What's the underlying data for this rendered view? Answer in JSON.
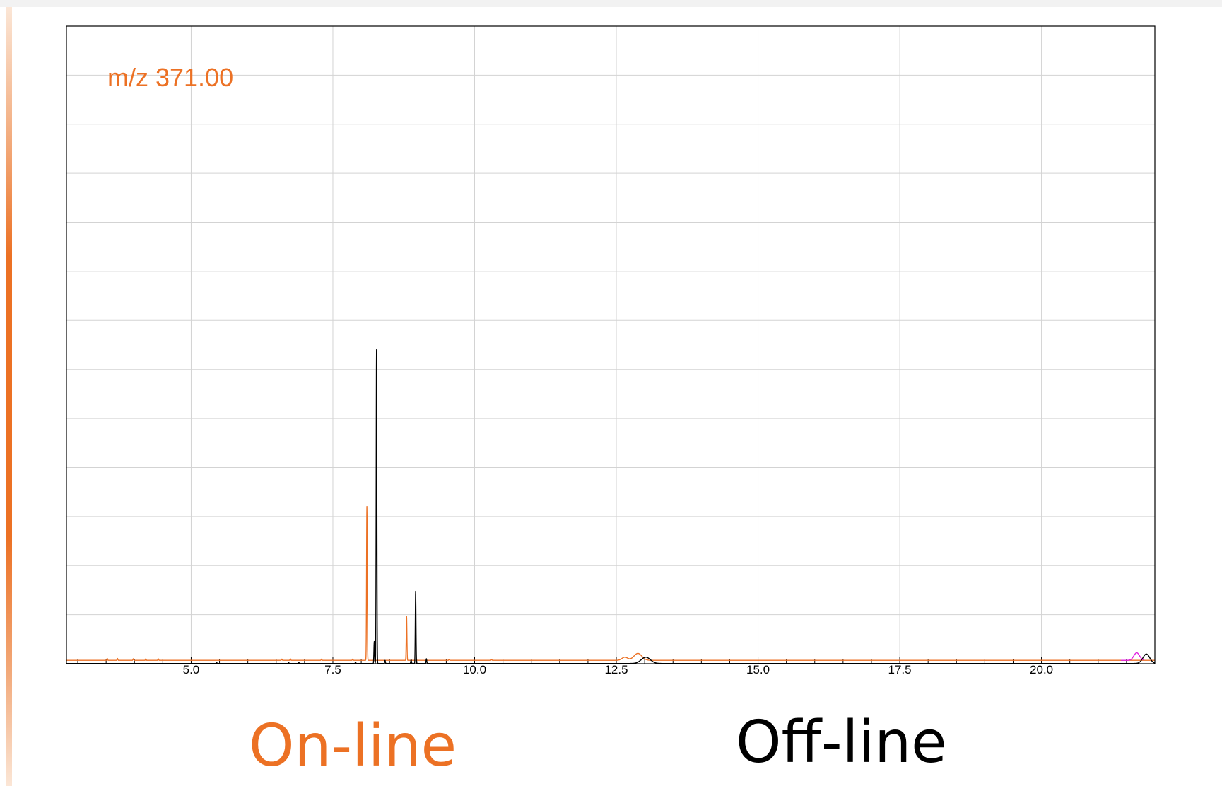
{
  "colors": {
    "online": "#ec7124",
    "offline": "#000000",
    "magenta": "#e020e0",
    "grid": "#d3d3d3",
    "accent": "#ec7124"
  },
  "annotation": "m/z 371.00",
  "labels": {
    "online": "On-line",
    "offline": "Off-line"
  },
  "chart_data": {
    "type": "line",
    "title": "",
    "xlabel": "",
    "ylabel": "",
    "xlim": [
      2.8,
      22.0
    ],
    "ylim": [
      0,
      100
    ],
    "grid": true,
    "x_ticks": [
      5.0,
      7.5,
      10.0,
      12.5,
      15.0,
      17.5,
      20.0
    ],
    "x_tick_labels": [
      "5.0",
      "7.5",
      "10.0",
      "12.5",
      "15.0",
      "17.5",
      "20.0"
    ],
    "annotation": "m/z 371.00",
    "series": [
      {
        "name": "On-line",
        "color": "#ec7124",
        "baseline": 0.4,
        "peaks": [
          {
            "x": 3.52,
            "h": 0.6,
            "w": 0.006
          },
          {
            "x": 3.7,
            "h": 0.6,
            "w": 0.006
          },
          {
            "x": 3.98,
            "h": 0.5,
            "w": 0.006
          },
          {
            "x": 4.2,
            "h": 0.5,
            "w": 0.006
          },
          {
            "x": 4.42,
            "h": 0.5,
            "w": 0.006
          },
          {
            "x": 6.6,
            "h": 0.4,
            "w": 0.006
          },
          {
            "x": 6.75,
            "h": 0.5,
            "w": 0.006
          },
          {
            "x": 7.3,
            "h": 0.4,
            "w": 0.006
          },
          {
            "x": 7.85,
            "h": 0.4,
            "w": 0.006
          },
          {
            "x": 8.1,
            "h": 49.0,
            "w": 0.006
          },
          {
            "x": 8.8,
            "h": 14.0,
            "w": 0.006
          },
          {
            "x": 9.55,
            "h": 0.3,
            "w": 0.006
          },
          {
            "x": 10.3,
            "h": 0.3,
            "w": 0.006
          },
          {
            "x": 12.65,
            "h": 1.0,
            "w": 0.05
          },
          {
            "x": 12.88,
            "h": 2.2,
            "w": 0.07
          }
        ]
      },
      {
        "name": "Off-line",
        "color": "#000000",
        "baseline": -0.6,
        "peaks": [
          {
            "x": 5.45,
            "h": 0.3,
            "w": 0.006
          },
          {
            "x": 6.72,
            "h": 0.3,
            "w": 0.006
          },
          {
            "x": 6.9,
            "h": 0.3,
            "w": 0.006
          },
          {
            "x": 7.9,
            "h": 0.4,
            "w": 0.006
          },
          {
            "x": 8.23,
            "h": 7.0,
            "w": 0.006
          },
          {
            "x": 8.27,
            "h": 100.0,
            "w": 0.006
          },
          {
            "x": 8.42,
            "h": 1.0,
            "w": 0.006
          },
          {
            "x": 8.88,
            "h": 1.2,
            "w": 0.006
          },
          {
            "x": 8.96,
            "h": 23.0,
            "w": 0.006
          },
          {
            "x": 9.15,
            "h": 1.5,
            "w": 0.006
          },
          {
            "x": 13.02,
            "h": 2.0,
            "w": 0.08
          },
          {
            "x": 21.85,
            "h": 3.0,
            "w": 0.06
          }
        ]
      },
      {
        "name": "",
        "color": "#e020e0",
        "baseline": 0.4,
        "x_range": [
          21.4,
          21.8
        ],
        "peaks": [
          {
            "x": 21.68,
            "h": 2.4,
            "w": 0.05
          }
        ]
      }
    ]
  }
}
